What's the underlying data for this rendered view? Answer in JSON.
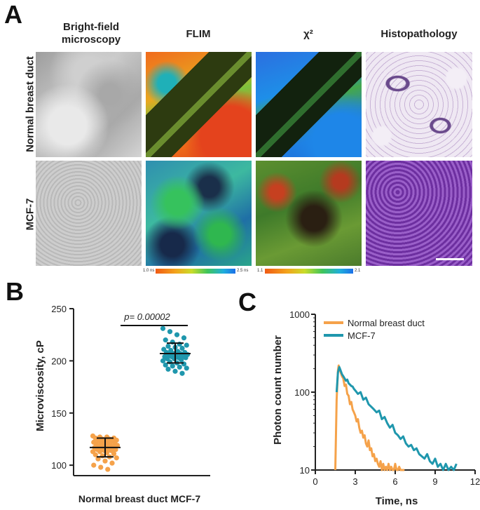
{
  "panel_a": {
    "letter": "A",
    "columns": [
      "Bright-field microscopy",
      "FLIM",
      "χ²",
      "Histopathology"
    ],
    "column_lines": [
      [
        "Bright-field",
        "microscopy"
      ],
      [
        "FLIM"
      ],
      [
        "χ²"
      ],
      [
        "Histopathology"
      ]
    ],
    "rows": [
      "Normal breast duct",
      "MCF-7"
    ],
    "flim_colorbar": {
      "min_label": "1.0 ns",
      "max_label": "2.5 ns"
    },
    "chi2_colorbar": {
      "min_label": "1.1",
      "max_label": "2.1"
    }
  },
  "panel_b": {
    "letter": "B"
  },
  "panel_c": {
    "letter": "C"
  },
  "chart_data": [
    {
      "type": "scatter",
      "panel": "B",
      "ylabel": "Microviscosity, cP",
      "categories": [
        "Normal breast duct",
        "MCF-7"
      ],
      "xlabel": "Normal breast duct MCF-7",
      "ylim": [
        90,
        250
      ],
      "yticks": [
        100,
        150,
        200,
        250
      ],
      "annotation": "p= 0.00002",
      "series": [
        {
          "category": "Normal breast duct",
          "color": "#f5a24a",
          "mean": 117,
          "sd_low": 108,
          "sd_high": 126,
          "values": [
            128,
            127,
            127,
            126,
            126,
            125,
            125,
            124,
            124,
            123,
            123,
            122,
            122,
            121,
            121,
            120,
            120,
            119,
            119,
            118,
            118,
            117,
            117,
            116,
            116,
            115,
            115,
            114,
            114,
            113,
            113,
            112,
            111,
            110,
            109,
            108,
            107,
            106,
            104,
            102,
            100,
            98,
            96
          ]
        },
        {
          "category": "MCF-7",
          "color": "#1f97ad",
          "mean": 207,
          "sd_low": 198,
          "sd_high": 217,
          "values": [
            231,
            228,
            225,
            222,
            220,
            218,
            216,
            215,
            214,
            213,
            212,
            211,
            210,
            209,
            208,
            208,
            207,
            207,
            206,
            206,
            205,
            205,
            204,
            204,
            203,
            203,
            202,
            202,
            201,
            200,
            199,
            198,
            197,
            196,
            195,
            194,
            193,
            192,
            190,
            188
          ]
        }
      ]
    },
    {
      "type": "line",
      "panel": "C",
      "xlabel": "Time, ns",
      "ylabel": "Photon count number",
      "xlim": [
        0,
        12
      ],
      "ylim": [
        10,
        1000
      ],
      "yscale": "log",
      "xticks": [
        0,
        3,
        6,
        9,
        12
      ],
      "yticks": [
        10,
        100,
        1000
      ],
      "legend_position": "top-right",
      "series": [
        {
          "name": "Normal breast duct",
          "color": "#f5a24a",
          "x": [
            1.5,
            1.6,
            1.7,
            1.75,
            1.8,
            1.9,
            2.0,
            2.1,
            2.2,
            2.3,
            2.4,
            2.5,
            2.6,
            2.7,
            2.8,
            2.9,
            3.0,
            3.1,
            3.2,
            3.3,
            3.4,
            3.5,
            3.6,
            3.7,
            3.8,
            3.9,
            4.0,
            4.1,
            4.2,
            4.3,
            4.4,
            4.5,
            4.6,
            4.7,
            4.8,
            4.9,
            5.0,
            5.1,
            5.2,
            5.3,
            5.4,
            5.5,
            5.6,
            5.7,
            5.8,
            5.9,
            6.0,
            6.1,
            6.2,
            6.3,
            6.4,
            6.5,
            6.6,
            6.7
          ],
          "y": [
            10,
            80,
            190,
            220,
            200,
            180,
            160,
            150,
            120,
            125,
            95,
            90,
            70,
            75,
            60,
            55,
            50,
            42,
            45,
            35,
            30,
            32,
            26,
            28,
            22,
            20,
            24,
            18,
            19,
            15,
            16,
            13,
            14,
            12,
            11,
            13,
            10,
            12,
            10,
            11,
            10,
            12,
            10,
            11,
            10,
            10,
            12,
            10,
            10,
            11,
            10,
            10,
            10,
            10
          ]
        },
        {
          "name": "MCF-7",
          "color": "#1f97ad",
          "x": [
            1.6,
            1.7,
            1.8,
            1.9,
            2.0,
            2.1,
            2.2,
            2.3,
            2.4,
            2.5,
            2.6,
            2.7,
            2.8,
            2.9,
            3.0,
            3.2,
            3.4,
            3.6,
            3.8,
            4.0,
            4.2,
            4.4,
            4.6,
            4.8,
            5.0,
            5.2,
            5.4,
            5.6,
            5.8,
            6.0,
            6.2,
            6.4,
            6.6,
            6.8,
            7.0,
            7.2,
            7.4,
            7.6,
            7.8,
            8.0,
            8.2,
            8.4,
            8.6,
            8.8,
            9.0,
            9.2,
            9.4,
            9.6,
            9.8,
            10.0,
            10.2,
            10.4,
            10.6
          ],
          "y": [
            100,
            180,
            210,
            190,
            170,
            160,
            150,
            140,
            145,
            130,
            125,
            120,
            118,
            110,
            105,
            95,
            100,
            80,
            85,
            70,
            65,
            60,
            55,
            58,
            45,
            48,
            40,
            35,
            38,
            30,
            28,
            25,
            27,
            22,
            20,
            21,
            18,
            19,
            16,
            15,
            14,
            16,
            13,
            12,
            14,
            11,
            12,
            10,
            12,
            10,
            11,
            10,
            12
          ]
        }
      ]
    }
  ]
}
